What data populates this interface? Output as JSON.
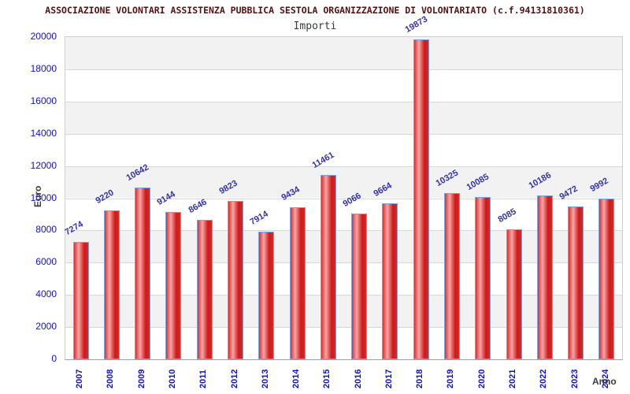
{
  "header": {
    "title": "ASSOCIAZIONE VOLONTARI ASSISTENZA PUBBLICA SESTOLA ORGANIZZAZIONE DI VOLONTARIATO (c.f.94131810361)",
    "subtitle": "Importi"
  },
  "chart_data": {
    "type": "bar",
    "title": "Importi",
    "categories": [
      "2007",
      "2008",
      "2009",
      "2010",
      "2011",
      "2012",
      "2013",
      "2014",
      "2015",
      "2016",
      "2017",
      "2018",
      "2019",
      "2020",
      "2021",
      "2022",
      "2023",
      "2024"
    ],
    "values": [
      7274,
      9220,
      10642,
      9144,
      8646,
      9823,
      7914,
      9434,
      11461,
      9066,
      9664,
      19873,
      10325,
      10085,
      8085,
      10186,
      9472,
      9992
    ],
    "xlabel": "Anno",
    "ylabel": "Euro",
    "ylim": [
      0,
      20000
    ],
    "ytick_step": 2000,
    "grid": "horizontal alternating bands",
    "legend": "none",
    "colors": {
      "bar_edge": "#7aa4e0",
      "bar_dark": "#d62a2a",
      "bar_light": "#f5a6a6",
      "value_label": "#3333aa",
      "tick_label": "#1111cc",
      "band_gray": "#f2f2f2",
      "band_white": "#ffffff",
      "gridline": "#d8d8d8",
      "title": "#551111",
      "subtitle": "#3a3a3a"
    }
  }
}
